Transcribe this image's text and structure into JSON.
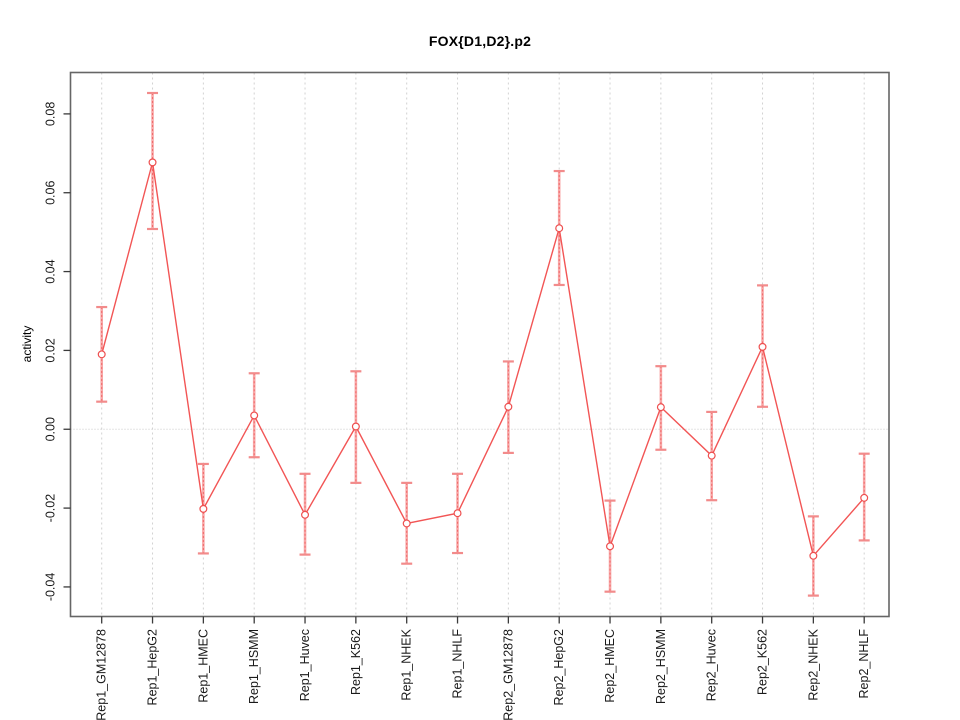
{
  "title": "FOX{D1,D2}.p2",
  "chart_data": {
    "type": "line",
    "title": "FOX{D1,D2}.p2",
    "xlabel": "",
    "ylabel": "activity",
    "legend_position": "none",
    "grid": {
      "vertical_category_lines": true,
      "zero_reference_line": true
    },
    "ylim": [
      -0.0475,
      0.0905
    ],
    "ytick_values": [
      0.08,
      0.06,
      0.04,
      0.02,
      0.0,
      -0.02,
      -0.04
    ],
    "ytick_labels": [
      "0.08",
      "0.06",
      "0.04",
      "0.02",
      "0.00",
      "-0.02",
      "-0.04"
    ],
    "categories": [
      "Rep1_GM12878",
      "Rep1_HepG2",
      "Rep1_HMEC",
      "Rep1_HSMM",
      "Rep1_Huvec",
      "Rep1_K562",
      "Rep1_NHEK",
      "Rep1_NHLF",
      "Rep2_GM12878",
      "Rep2_HepG2",
      "Rep2_HMEC",
      "Rep2_HSMM",
      "Rep2_Huvec",
      "Rep2_K562",
      "Rep2_NHEK",
      "Rep2_NHLF"
    ],
    "series": [
      {
        "name": "activity",
        "marker": "open-circle",
        "values": [
          0.019,
          0.0677,
          -0.0202,
          0.0035,
          -0.0217,
          0.0007,
          -0.0239,
          -0.0213,
          0.0057,
          0.051,
          -0.0297,
          0.0056,
          -0.0067,
          0.0209,
          -0.0321,
          -0.0174
        ],
        "upper": [
          0.031,
          0.0853,
          -0.0088,
          0.0142,
          -0.0113,
          0.0147,
          -0.0136,
          -0.0113,
          0.0172,
          0.0655,
          -0.0181,
          0.016,
          0.0044,
          0.0365,
          -0.0221,
          -0.0062
        ],
        "lower": [
          0.007,
          0.0508,
          -0.0315,
          -0.0071,
          -0.0318,
          -0.0136,
          -0.0341,
          -0.0314,
          -0.006,
          0.0366,
          -0.0412,
          -0.0052,
          -0.018,
          0.0057,
          -0.0422,
          -0.0282
        ]
      }
    ],
    "colors": {
      "line": "#f25555",
      "point_stroke": "#ee4f4f",
      "error_bar": "#f8a8a8",
      "error_bar_inner_dash": "#f06a6a",
      "error_cap": "#f28b8b",
      "grid_line": "#d2d2d2",
      "zero_line": "#c9c9c9",
      "box": "#666666",
      "tick": "#3a3a3a",
      "text": "#1a1a1a"
    }
  }
}
